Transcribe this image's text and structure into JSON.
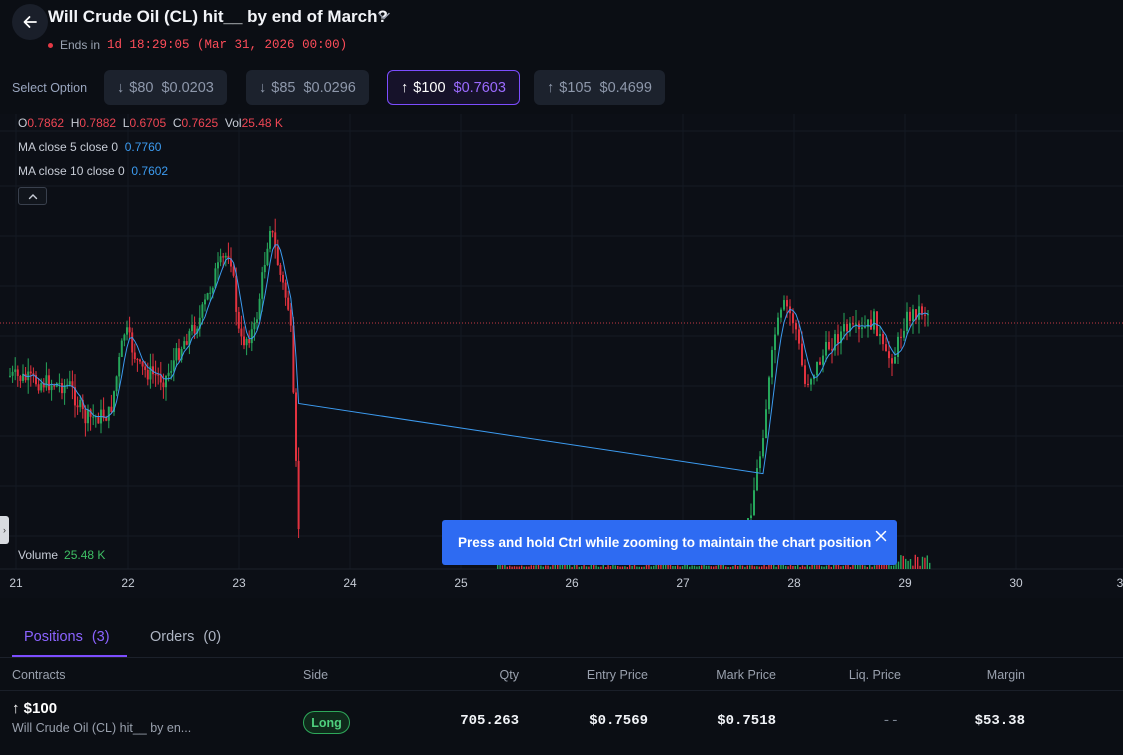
{
  "header": {
    "back_icon": "arrow-left-icon",
    "title": "Will Crude Oil (CL) hit__ by end of March?",
    "caret_icon": "chevron-down-icon",
    "ends_label": "Ends in",
    "ends_time": "1d 18:29:05 (Mar 31, 2026 00:00)"
  },
  "options": {
    "label": "Select Option",
    "items": [
      {
        "arrow": "↓",
        "strike": "$80",
        "price": "$0.0203",
        "active": false
      },
      {
        "arrow": "↓",
        "strike": "$85",
        "price": "$0.0296",
        "active": false
      },
      {
        "arrow": "↑",
        "strike": "$100",
        "price": "$0.7603",
        "active": true
      },
      {
        "arrow": "↑",
        "strike": "$105",
        "price": "$0.4699",
        "active": false
      }
    ]
  },
  "chart": {
    "ohlc": {
      "o_label": "O",
      "o": "0.7862",
      "h_label": "H",
      "h": "0.7882",
      "l_label": "L",
      "l": "0.6705",
      "c_label": "C",
      "c": "0.7625",
      "vol_label": "Vol",
      "vol": "25.48 K"
    },
    "ma5": {
      "label": "MA close 5 close 0",
      "value": "0.7760"
    },
    "ma10": {
      "label": "MA close 10 close 0",
      "value": "0.7602"
    },
    "collapse_icon": "chevron-up-icon",
    "volume_label": "Volume",
    "volume_value": "25.48 K",
    "x_ticks": [
      "21",
      "22",
      "23",
      "24",
      "25",
      "26",
      "27",
      "28",
      "29",
      "30",
      "3"
    ],
    "colors": {
      "up": "#26a65b",
      "down": "#e2323f",
      "ma5": "#3c9bf0",
      "ma10": "#3a7fd8",
      "last_price_line": "#c43a44"
    }
  },
  "toast": {
    "text": "Press and hold Ctrl while zooming to maintain the chart position",
    "close_icon": "close-icon"
  },
  "tabs": [
    {
      "label": "Positions",
      "count": "(3)",
      "active": true
    },
    {
      "label": "Orders",
      "count": "(0)",
      "active": false
    }
  ],
  "table": {
    "headers": {
      "contracts": "Contracts",
      "side": "Side",
      "qty": "Qty",
      "entry": "Entry Price",
      "mark": "Mark Price",
      "liq": "Liq. Price",
      "margin": "Margin"
    },
    "rows": [
      {
        "contract": "↑ $100",
        "subtitle": "Will Crude Oil (CL) hit__ by en...",
        "side": "Long",
        "qty": "705.263",
        "entry": "$0.7569",
        "mark": "$0.7518",
        "liq": "--",
        "margin": "$53.38"
      }
    ]
  }
}
